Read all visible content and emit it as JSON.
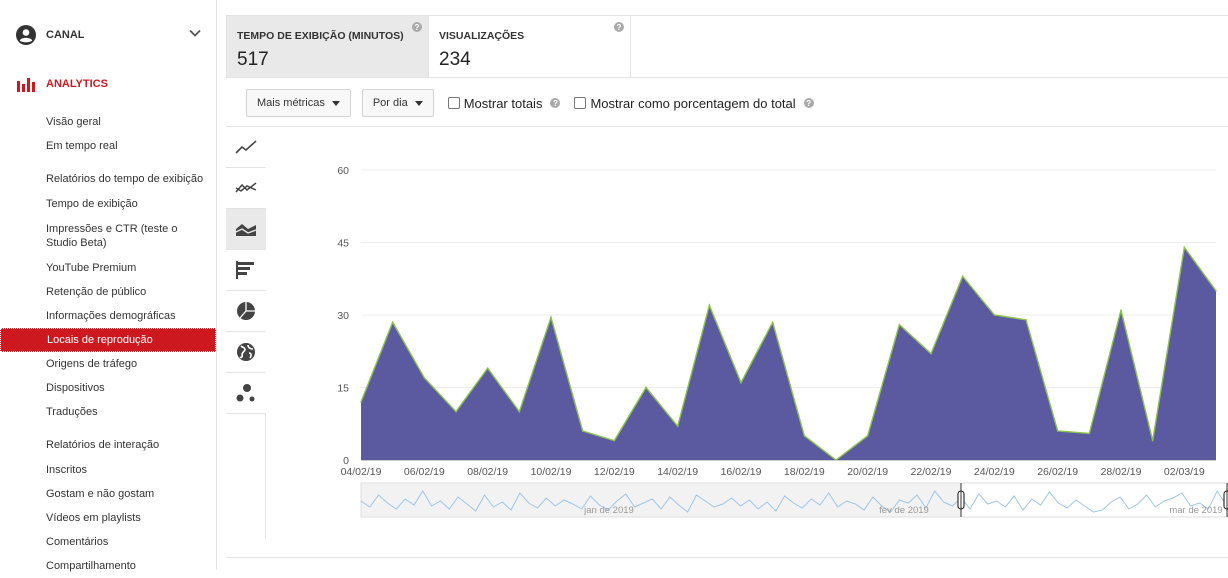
{
  "sidebar": {
    "canal_label": "CANAL",
    "analytics_label": "ANALYTICS",
    "items": [
      {
        "label": "Visão geral",
        "kind": "item"
      },
      {
        "label": "Em tempo real",
        "kind": "item"
      },
      {
        "label": "Relatórios do tempo de exibição",
        "kind": "head"
      },
      {
        "label": "Tempo de exibição",
        "kind": "item"
      },
      {
        "label": "Impressões e CTR (teste o Studio Beta)",
        "kind": "item2"
      },
      {
        "label": "YouTube Premium",
        "kind": "item"
      },
      {
        "label": "Retenção de público",
        "kind": "item"
      },
      {
        "label": "Informações demográficas",
        "kind": "item"
      },
      {
        "label": "Locais de reprodução",
        "kind": "item",
        "active": true
      },
      {
        "label": "Origens de tráfego",
        "kind": "item"
      },
      {
        "label": "Dispositivos",
        "kind": "item"
      },
      {
        "label": "Traduções",
        "kind": "item"
      },
      {
        "label": "Relatórios de interação",
        "kind": "head"
      },
      {
        "label": "Inscritos",
        "kind": "item"
      },
      {
        "label": "Gostam e não gostam",
        "kind": "item"
      },
      {
        "label": "Vídeos em playlists",
        "kind": "item"
      },
      {
        "label": "Comentários",
        "kind": "item"
      },
      {
        "label": "Compartilhamento",
        "kind": "item"
      }
    ]
  },
  "metrics": [
    {
      "title": "TEMPO DE EXIBIÇÃO (MINUTOS)",
      "value": "517"
    },
    {
      "title": "VISUALIZAÇÕES",
      "value": "234"
    }
  ],
  "controls": {
    "more_metrics": "Mais métricas",
    "per_day": "Por dia",
    "show_totals": "Mostrar totais",
    "show_percentage": "Mostrar como porcentagem do total"
  },
  "chart_type_icons": [
    "line-chart-icon",
    "multiline-chart-icon",
    "stacked-area-chart-icon",
    "bar-chart-icon",
    "pie-chart-icon",
    "globe-map-icon",
    "bubble-chart-icon"
  ],
  "colors": {
    "accent": "#cc181e",
    "area_fill": "#5b5aa0",
    "area_line": "#8bc34a",
    "selected_bg": "#e9e9e9"
  },
  "chart_data": {
    "type": "area",
    "x": [
      "04/02/19",
      "05/02/19",
      "06/02/19",
      "07/02/19",
      "08/02/19",
      "09/02/19",
      "10/02/19",
      "11/02/19",
      "12/02/19",
      "13/02/19",
      "14/02/19",
      "15/02/19",
      "16/02/19",
      "17/02/19",
      "18/02/19",
      "19/02/19",
      "20/02/19",
      "21/02/19",
      "22/02/19",
      "23/02/19",
      "24/02/19",
      "25/02/19",
      "26/02/19",
      "27/02/19",
      "28/02/19",
      "01/03/19",
      "02/03/19",
      "03/03/19"
    ],
    "x_tick_labels": [
      "04/02/19",
      "06/02/19",
      "08/02/19",
      "10/02/19",
      "12/02/19",
      "14/02/19",
      "16/02/19",
      "18/02/19",
      "20/02/19",
      "22/02/19",
      "24/02/19",
      "26/02/19",
      "28/02/19",
      "02/03/19"
    ],
    "series": [
      {
        "values": [
          12,
          28.5,
          17,
          10,
          19,
          10,
          29.5,
          6,
          4,
          15,
          7,
          32,
          16,
          28.5,
          5,
          0,
          5,
          28,
          22,
          38,
          30,
          29,
          6,
          5.5,
          31,
          4,
          44,
          35
        ]
      }
    ],
    "y_ticks": [
      0,
      15,
      30,
      45,
      60
    ],
    "ylim": [
      0,
      60
    ],
    "grid": true,
    "navigator_labels": [
      "jan de 2019",
      "fev de 2019",
      "mar de 2019"
    ]
  }
}
